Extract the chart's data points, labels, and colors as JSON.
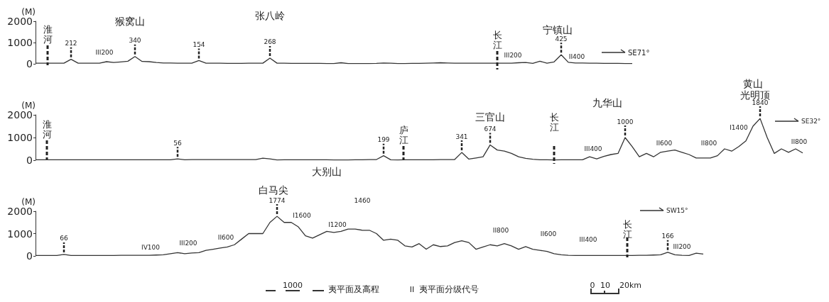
{
  "chart_data": [
    {
      "type": "line",
      "ylabel": "(M)",
      "color": "#333333",
      "marker": "none",
      "tick_labels": "y",
      "ylim": [
        0,
        2000
      ],
      "yticks": [
        0,
        1000,
        2000
      ],
      "categories": [
        null,
        null,
        null,
        null,
        null,
        null,
        null,
        null,
        null,
        null,
        null,
        null,
        null,
        null,
        null,
        null,
        null,
        null,
        null,
        null,
        null,
        null,
        null,
        null,
        null,
        null,
        null,
        null,
        null,
        null,
        null,
        null,
        null,
        null,
        null,
        null,
        null,
        null,
        null,
        null,
        null,
        null,
        null,
        null,
        null,
        null,
        null,
        null,
        null,
        null,
        null,
        null,
        null,
        null,
        null,
        null,
        null,
        null,
        null,
        null,
        null,
        null,
        null,
        null,
        null,
        null,
        null,
        null,
        null,
        null,
        null,
        null,
        null,
        null,
        null,
        null,
        null,
        null,
        null,
        null,
        null,
        null,
        null,
        null,
        null
      ],
      "values": [
        30,
        30,
        30,
        30,
        30,
        212,
        30,
        30,
        30,
        30,
        100,
        60,
        90,
        120,
        340,
        110,
        100,
        60,
        40,
        40,
        30,
        30,
        30,
        154,
        30,
        30,
        30,
        20,
        20,
        20,
        30,
        30,
        30,
        268,
        30,
        30,
        20,
        20,
        20,
        20,
        20,
        10,
        10,
        50,
        10,
        10,
        10,
        10,
        20,
        40,
        30,
        10,
        10,
        20,
        20,
        30,
        40,
        50,
        40,
        30,
        30,
        30,
        30,
        30,
        30,
        30,
        30,
        30,
        50,
        60,
        20,
        120,
        30,
        90,
        425,
        70,
        40,
        40,
        30,
        30,
        20,
        20,
        20,
        10,
        10
      ],
      "value_labels": [
        null,
        null,
        null,
        null,
        null,
        "212",
        null,
        null,
        null,
        null,
        null,
        null,
        null,
        null,
        "340",
        null,
        null,
        null,
        null,
        null,
        null,
        null,
        null,
        "154",
        null,
        null,
        null,
        null,
        null,
        null,
        null,
        null,
        null,
        "268",
        null,
        null,
        null,
        null,
        null,
        null,
        null,
        null,
        null,
        null,
        null,
        null,
        null,
        null,
        null,
        null,
        null,
        null,
        null,
        null,
        null,
        null,
        null,
        null,
        null,
        null,
        null,
        null,
        null,
        null,
        null,
        null,
        null,
        null,
        null,
        null,
        null,
        null,
        null,
        null,
        "425",
        null,
        null,
        null,
        null,
        null,
        null,
        null,
        null,
        null,
        null
      ],
      "annotations": [
        "SE71°",
        "猴窝山",
        "张八岭",
        "宁镇山",
        "淮河",
        "长江",
        "III200",
        "III200",
        "II400"
      ]
    },
    {
      "type": "line",
      "ylabel": "(M)",
      "color": "#333333",
      "marker": "none",
      "tick_labels": "y",
      "ylim": [
        0,
        2000
      ],
      "yticks": [
        0,
        1000,
        2000
      ],
      "categories": [
        null,
        null,
        null,
        null,
        null,
        null,
        null,
        null,
        null,
        null,
        null,
        null,
        null,
        null,
        null,
        null,
        null,
        null,
        null,
        null,
        null,
        null,
        null,
        null,
        null,
        null,
        null,
        null,
        null,
        null,
        null,
        null,
        null,
        null,
        null,
        null,
        null,
        null,
        null,
        null,
        null,
        null,
        null,
        null,
        null,
        null,
        null,
        null,
        null,
        null,
        null,
        null,
        null,
        null,
        null,
        null,
        null,
        null,
        null,
        null,
        null,
        null,
        null,
        null,
        null,
        null,
        null,
        null,
        null,
        null,
        null,
        null,
        null,
        null,
        null,
        null,
        null,
        null,
        null,
        null,
        null,
        null,
        null,
        null,
        null,
        null,
        null,
        null,
        null,
        null,
        null,
        null,
        null,
        null,
        null,
        null,
        null,
        null,
        null,
        null,
        null,
        null,
        null,
        null,
        null,
        null,
        null,
        null,
        null
      ],
      "values": [
        20,
        20,
        20,
        20,
        20,
        20,
        20,
        20,
        20,
        20,
        20,
        20,
        20,
        20,
        20,
        20,
        20,
        20,
        20,
        20,
        56,
        20,
        30,
        30,
        30,
        30,
        30,
        30,
        30,
        30,
        30,
        30,
        90,
        60,
        10,
        20,
        20,
        20,
        20,
        20,
        20,
        20,
        10,
        10,
        10,
        20,
        20,
        30,
        30,
        199,
        20,
        10,
        20,
        20,
        20,
        20,
        20,
        30,
        30,
        30,
        341,
        50,
        100,
        150,
        674,
        450,
        400,
        300,
        150,
        80,
        40,
        20,
        20,
        10,
        20,
        20,
        20,
        20,
        150,
        60,
        170,
        250,
        300,
        1000,
        600,
        150,
        300,
        150,
        350,
        400,
        450,
        350,
        250,
        100,
        100,
        100,
        200,
        500,
        400,
        600,
        850,
        1500,
        1840,
        1000,
        300,
        500,
        350,
        500,
        320
      ],
      "value_labels": [
        null,
        null,
        null,
        null,
        null,
        null,
        null,
        null,
        null,
        null,
        null,
        null,
        null,
        null,
        null,
        null,
        null,
        null,
        null,
        null,
        "56",
        null,
        null,
        null,
        null,
        null,
        null,
        null,
        null,
        null,
        null,
        null,
        null,
        null,
        null,
        null,
        null,
        null,
        null,
        null,
        null,
        null,
        null,
        null,
        null,
        null,
        null,
        null,
        null,
        "199",
        null,
        null,
        null,
        null,
        null,
        null,
        null,
        null,
        null,
        null,
        "341",
        null,
        null,
        null,
        "674",
        null,
        null,
        null,
        null,
        null,
        null,
        null,
        null,
        null,
        null,
        null,
        null,
        null,
        null,
        null,
        null,
        null,
        null,
        "1000",
        null,
        null,
        null,
        null,
        null,
        null,
        null,
        null,
        null,
        null,
        null,
        null,
        null,
        null,
        null,
        null,
        null,
        null,
        "1840",
        null,
        null,
        null,
        null,
        null,
        null
      ],
      "annotations": [
        "SE32°",
        "大别山",
        "淮河",
        "庐江",
        "三官山",
        "长江",
        "九华山",
        "黄山",
        "光明顶",
        "III400",
        "II600",
        "II800",
        "I1400",
        "II800"
      ]
    },
    {
      "type": "line",
      "ylabel": "(M)",
      "color": "#333333",
      "marker": "none",
      "tick_labels": "y",
      "ylim": [
        0,
        2000
      ],
      "yticks": [
        0,
        1000,
        2000
      ],
      "categories": [
        null,
        null,
        null,
        null,
        null,
        null,
        null,
        null,
        null,
        null,
        null,
        null,
        null,
        null,
        null,
        null,
        null,
        null,
        null,
        null,
        null,
        null,
        null,
        null,
        null,
        null,
        null,
        null,
        null,
        null,
        null,
        null,
        null,
        null,
        null,
        null,
        null,
        null,
        null,
        null,
        null,
        null,
        null,
        null,
        null,
        null,
        null,
        null,
        null,
        null,
        null,
        null,
        null,
        null,
        null,
        null,
        null,
        null,
        null,
        null,
        null,
        null,
        null,
        null,
        null,
        null,
        null,
        null,
        null,
        null,
        null,
        null,
        null,
        null,
        null,
        null,
        null,
        null,
        null,
        null,
        null,
        null,
        null,
        null,
        null,
        null,
        null,
        null,
        null,
        null,
        null,
        null,
        null,
        null,
        null
      ],
      "values": [
        20,
        20,
        20,
        20,
        66,
        20,
        20,
        20,
        20,
        20,
        20,
        20,
        30,
        30,
        30,
        30,
        30,
        40,
        50,
        100,
        150,
        100,
        130,
        150,
        250,
        300,
        350,
        400,
        500,
        750,
        1000,
        1000,
        1000,
        1500,
        1774,
        1500,
        1500,
        1300,
        900,
        800,
        950,
        1100,
        1050,
        1100,
        1200,
        1200,
        1150,
        1150,
        1000,
        700,
        750,
        700,
        450,
        400,
        550,
        300,
        500,
        420,
        450,
        600,
        680,
        600,
        300,
        400,
        500,
        450,
        550,
        450,
        300,
        420,
        300,
        250,
        200,
        100,
        50,
        30,
        20,
        20,
        20,
        20,
        20,
        20,
        20,
        20,
        20,
        30,
        30,
        40,
        50,
        166,
        50,
        30,
        20,
        120,
        80
      ],
      "value_labels": [
        null,
        null,
        null,
        null,
        "66",
        null,
        null,
        null,
        null,
        null,
        null,
        null,
        null,
        null,
        null,
        null,
        null,
        null,
        null,
        null,
        null,
        null,
        null,
        null,
        null,
        null,
        null,
        null,
        null,
        null,
        null,
        null,
        null,
        null,
        "1774",
        null,
        null,
        null,
        null,
        null,
        null,
        null,
        null,
        null,
        null,
        null,
        null,
        null,
        null,
        null,
        null,
        null,
        null,
        null,
        null,
        null,
        null,
        null,
        null,
        null,
        null,
        null,
        null,
        null,
        null,
        null,
        null,
        null,
        null,
        null,
        null,
        null,
        null,
        null,
        null,
        null,
        null,
        null,
        null,
        null,
        null,
        null,
        null,
        null,
        null,
        null,
        null,
        null,
        null,
        "166",
        null,
        null,
        null,
        null,
        null
      ],
      "annotations": [
        "SW15°",
        "白马尖",
        "IV100",
        "III200",
        "II600",
        "I1600",
        "I1200",
        "1460",
        "II800",
        "II600",
        "III400",
        "长江",
        "III200",
        "1000",
        "夷平面及高程",
        "II",
        "夷平面分级代号",
        "0",
        "10",
        "20km"
      ]
    }
  ]
}
